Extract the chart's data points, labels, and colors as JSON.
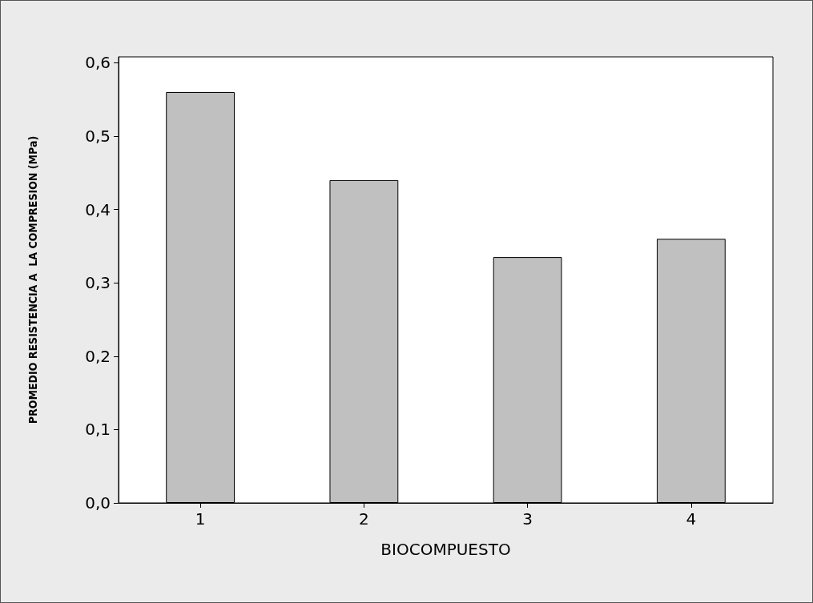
{
  "chart_data": {
    "type": "bar",
    "xlabel": "BIOCOMPUESTO",
    "ylabel": "PROMEDIO RESISTENCIA A  LA COMPRESION (MPa)",
    "categories": [
      "1",
      "2",
      "3",
      "4"
    ],
    "series": [
      {
        "color": "#c0c0c0",
        "values": [
          0.56,
          0.44,
          0.335,
          0.36
        ]
      }
    ],
    "ylim": [
      0,
      0.608
    ],
    "yticks": [
      {
        "value": 0,
        "label": "0,0"
      },
      {
        "value": 0.1,
        "label": "0,1"
      },
      {
        "value": 0.2,
        "label": "0,2"
      },
      {
        "value": 0.3,
        "label": "0,3"
      },
      {
        "value": 0.4,
        "label": "0,4"
      },
      {
        "value": 0.5,
        "label": "0,5"
      },
      {
        "value": 0.6,
        "label": "0,6"
      }
    ],
    "grid": false
  }
}
